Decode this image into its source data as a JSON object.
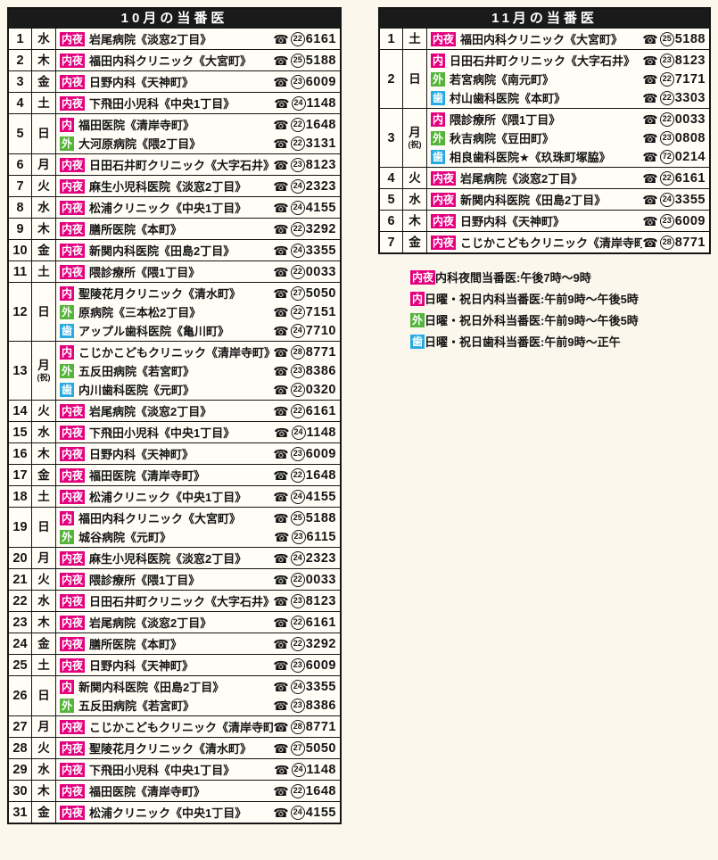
{
  "colors": {
    "page_bg": "#fbf7ec",
    "cell_bg": "#fffdf6",
    "header_bg": "#1a1a1a",
    "header_text": "#ffffff",
    "border": "#151515",
    "badge_naiya": "#e4007f",
    "badge_nai": "#e4007f",
    "badge_geka": "#55b43a",
    "badge_shika": "#29abe2"
  },
  "icons": {
    "telephone": "☎"
  },
  "months": [
    {
      "title": "10月の当番医",
      "days": [
        {
          "day": "1",
          "weekday": "水",
          "holiday": "",
          "entries": [
            {
              "badge": "内夜",
              "type": "naiya",
              "name": "岩尾病院《淡窓2丁目》",
              "exchange": "22",
              "number": "6161"
            }
          ]
        },
        {
          "day": "2",
          "weekday": "木",
          "holiday": "",
          "entries": [
            {
              "badge": "内夜",
              "type": "naiya",
              "name": "福田内科クリニック《大宮町》",
              "exchange": "25",
              "number": "5188"
            }
          ]
        },
        {
          "day": "3",
          "weekday": "金",
          "holiday": "",
          "entries": [
            {
              "badge": "内夜",
              "type": "naiya",
              "name": "日野内科《天神町》",
              "exchange": "23",
              "number": "6009"
            }
          ]
        },
        {
          "day": "4",
          "weekday": "土",
          "holiday": "",
          "entries": [
            {
              "badge": "内夜",
              "type": "naiya",
              "name": "下飛田小児科《中央1丁目》",
              "exchange": "24",
              "number": "1148"
            }
          ]
        },
        {
          "day": "5",
          "weekday": "日",
          "holiday": "",
          "entries": [
            {
              "badge": "内",
              "type": "nai",
              "name": "福田医院《清岸寺町》",
              "exchange": "22",
              "number": "1648"
            },
            {
              "badge": "外",
              "type": "geka",
              "name": "大河原病院《隈2丁目》",
              "exchange": "22",
              "number": "3131"
            }
          ]
        },
        {
          "day": "6",
          "weekday": "月",
          "holiday": "",
          "entries": [
            {
              "badge": "内夜",
              "type": "naiya",
              "name": "日田石井町クリニック《大字石井》",
              "exchange": "23",
              "number": "8123"
            }
          ]
        },
        {
          "day": "7",
          "weekday": "火",
          "holiday": "",
          "entries": [
            {
              "badge": "内夜",
              "type": "naiya",
              "name": "麻生小児科医院《淡窓2丁目》",
              "exchange": "24",
              "number": "2323"
            }
          ]
        },
        {
          "day": "8",
          "weekday": "水",
          "holiday": "",
          "entries": [
            {
              "badge": "内夜",
              "type": "naiya",
              "name": "松浦クリニック《中央1丁目》",
              "exchange": "24",
              "number": "4155"
            }
          ]
        },
        {
          "day": "9",
          "weekday": "木",
          "holiday": "",
          "entries": [
            {
              "badge": "内夜",
              "type": "naiya",
              "name": "膳所医院《本町》",
              "exchange": "22",
              "number": "3292"
            }
          ]
        },
        {
          "day": "10",
          "weekday": "金",
          "holiday": "",
          "entries": [
            {
              "badge": "内夜",
              "type": "naiya",
              "name": "新関内科医院《田島2丁目》",
              "exchange": "24",
              "number": "3355"
            }
          ]
        },
        {
          "day": "11",
          "weekday": "土",
          "holiday": "",
          "entries": [
            {
              "badge": "内夜",
              "type": "naiya",
              "name": "隈診療所《隈1丁目》",
              "exchange": "22",
              "number": "0033"
            }
          ]
        },
        {
          "day": "12",
          "weekday": "日",
          "holiday": "",
          "entries": [
            {
              "badge": "内",
              "type": "nai",
              "name": "聖陵花月クリニック《清水町》",
              "exchange": "27",
              "number": "5050"
            },
            {
              "badge": "外",
              "type": "geka",
              "name": "原病院《三本松2丁目》",
              "exchange": "22",
              "number": "7151"
            },
            {
              "badge": "歯",
              "type": "shika",
              "name": "アップル歯科医院《亀川町》",
              "exchange": "24",
              "number": "7710"
            }
          ]
        },
        {
          "day": "13",
          "weekday": "月",
          "holiday": "(祝)",
          "entries": [
            {
              "badge": "内",
              "type": "nai",
              "name": "こじかこどもクリニック《清岸寺町》",
              "exchange": "28",
              "number": "8771"
            },
            {
              "badge": "外",
              "type": "geka",
              "name": "五反田病院《若宮町》",
              "exchange": "23",
              "number": "8386"
            },
            {
              "badge": "歯",
              "type": "shika",
              "name": "内川歯科医院《元町》",
              "exchange": "22",
              "number": "0320"
            }
          ]
        },
        {
          "day": "14",
          "weekday": "火",
          "holiday": "",
          "entries": [
            {
              "badge": "内夜",
              "type": "naiya",
              "name": "岩尾病院《淡窓2丁目》",
              "exchange": "22",
              "number": "6161"
            }
          ]
        },
        {
          "day": "15",
          "weekday": "水",
          "holiday": "",
          "entries": [
            {
              "badge": "内夜",
              "type": "naiya",
              "name": "下飛田小児科《中央1丁目》",
              "exchange": "24",
              "number": "1148"
            }
          ]
        },
        {
          "day": "16",
          "weekday": "木",
          "holiday": "",
          "entries": [
            {
              "badge": "内夜",
              "type": "naiya",
              "name": "日野内科《天神町》",
              "exchange": "23",
              "number": "6009"
            }
          ]
        },
        {
          "day": "17",
          "weekday": "金",
          "holiday": "",
          "entries": [
            {
              "badge": "内夜",
              "type": "naiya",
              "name": "福田医院《清岸寺町》",
              "exchange": "22",
              "number": "1648"
            }
          ]
        },
        {
          "day": "18",
          "weekday": "土",
          "holiday": "",
          "entries": [
            {
              "badge": "内夜",
              "type": "naiya",
              "name": "松浦クリニック《中央1丁目》",
              "exchange": "24",
              "number": "4155"
            }
          ]
        },
        {
          "day": "19",
          "weekday": "日",
          "holiday": "",
          "entries": [
            {
              "badge": "内",
              "type": "nai",
              "name": "福田内科クリニック《大宮町》",
              "exchange": "25",
              "number": "5188"
            },
            {
              "badge": "外",
              "type": "geka",
              "name": "城谷病院《元町》",
              "exchange": "23",
              "number": "6115"
            }
          ]
        },
        {
          "day": "20",
          "weekday": "月",
          "holiday": "",
          "entries": [
            {
              "badge": "内夜",
              "type": "naiya",
              "name": "麻生小児科医院《淡窓2丁目》",
              "exchange": "24",
              "number": "2323"
            }
          ]
        },
        {
          "day": "21",
          "weekday": "火",
          "holiday": "",
          "entries": [
            {
              "badge": "内夜",
              "type": "naiya",
              "name": "隈診療所《隈1丁目》",
              "exchange": "22",
              "number": "0033"
            }
          ]
        },
        {
          "day": "22",
          "weekday": "水",
          "holiday": "",
          "entries": [
            {
              "badge": "内夜",
              "type": "naiya",
              "name": "日田石井町クリニック《大字石井》",
              "exchange": "23",
              "number": "8123"
            }
          ]
        },
        {
          "day": "23",
          "weekday": "木",
          "holiday": "",
          "entries": [
            {
              "badge": "内夜",
              "type": "naiya",
              "name": "岩尾病院《淡窓2丁目》",
              "exchange": "22",
              "number": "6161"
            }
          ]
        },
        {
          "day": "24",
          "weekday": "金",
          "holiday": "",
          "entries": [
            {
              "badge": "内夜",
              "type": "naiya",
              "name": "膳所医院《本町》",
              "exchange": "22",
              "number": "3292"
            }
          ]
        },
        {
          "day": "25",
          "weekday": "土",
          "holiday": "",
          "entries": [
            {
              "badge": "内夜",
              "type": "naiya",
              "name": "日野内科《天神町》",
              "exchange": "23",
              "number": "6009"
            }
          ]
        },
        {
          "day": "26",
          "weekday": "日",
          "holiday": "",
          "entries": [
            {
              "badge": "内",
              "type": "nai",
              "name": "新関内科医院《田島2丁目》",
              "exchange": "24",
              "number": "3355"
            },
            {
              "badge": "外",
              "type": "geka",
              "name": "五反田病院《若宮町》",
              "exchange": "23",
              "number": "8386"
            }
          ]
        },
        {
          "day": "27",
          "weekday": "月",
          "holiday": "",
          "entries": [
            {
              "badge": "内夜",
              "type": "naiya",
              "name": "こじかこどもクリニック《清岸寺町》",
              "exchange": "28",
              "number": "8771"
            }
          ]
        },
        {
          "day": "28",
          "weekday": "火",
          "holiday": "",
          "entries": [
            {
              "badge": "内夜",
              "type": "naiya",
              "name": "聖陵花月クリニック《清水町》",
              "exchange": "27",
              "number": "5050"
            }
          ]
        },
        {
          "day": "29",
          "weekday": "水",
          "holiday": "",
          "entries": [
            {
              "badge": "内夜",
              "type": "naiya",
              "name": "下飛田小児科《中央1丁目》",
              "exchange": "24",
              "number": "1148"
            }
          ]
        },
        {
          "day": "30",
          "weekday": "木",
          "holiday": "",
          "entries": [
            {
              "badge": "内夜",
              "type": "naiya",
              "name": "福田医院《清岸寺町》",
              "exchange": "22",
              "number": "1648"
            }
          ]
        },
        {
          "day": "31",
          "weekday": "金",
          "holiday": "",
          "entries": [
            {
              "badge": "内夜",
              "type": "naiya",
              "name": "松浦クリニック《中央1丁目》",
              "exchange": "24",
              "number": "4155"
            }
          ]
        }
      ]
    },
    {
      "title": "11月の当番医",
      "days": [
        {
          "day": "1",
          "weekday": "土",
          "holiday": "",
          "entries": [
            {
              "badge": "内夜",
              "type": "naiya",
              "name": "福田内科クリニック《大宮町》",
              "exchange": "25",
              "number": "5188"
            }
          ]
        },
        {
          "day": "2",
          "weekday": "日",
          "holiday": "",
          "entries": [
            {
              "badge": "内",
              "type": "nai",
              "name": "日田石井町クリニック《大字石井》",
              "exchange": "23",
              "number": "8123"
            },
            {
              "badge": "外",
              "type": "geka",
              "name": "若宮病院《南元町》",
              "exchange": "22",
              "number": "7171"
            },
            {
              "badge": "歯",
              "type": "shika",
              "name": "村山歯科医院《本町》",
              "exchange": "22",
              "number": "3303"
            }
          ]
        },
        {
          "day": "3",
          "weekday": "月",
          "holiday": "(祝)",
          "entries": [
            {
              "badge": "内",
              "type": "nai",
              "name": "隈診療所《隈1丁目》",
              "exchange": "22",
              "number": "0033"
            },
            {
              "badge": "外",
              "type": "geka",
              "name": "秋吉病院《豆田町》",
              "exchange": "23",
              "number": "0808"
            },
            {
              "badge": "歯",
              "type": "shika",
              "name": "相良歯科医院★《玖珠町塚脇》",
              "exchange": "72",
              "number": "0214"
            }
          ]
        },
        {
          "day": "4",
          "weekday": "火",
          "holiday": "",
          "entries": [
            {
              "badge": "内夜",
              "type": "naiya",
              "name": "岩尾病院《淡窓2丁目》",
              "exchange": "22",
              "number": "6161"
            }
          ]
        },
        {
          "day": "5",
          "weekday": "水",
          "holiday": "",
          "entries": [
            {
              "badge": "内夜",
              "type": "naiya",
              "name": "新関内科医院《田島2丁目》",
              "exchange": "24",
              "number": "3355"
            }
          ]
        },
        {
          "day": "6",
          "weekday": "木",
          "holiday": "",
          "entries": [
            {
              "badge": "内夜",
              "type": "naiya",
              "name": "日野内科《天神町》",
              "exchange": "23",
              "number": "6009"
            }
          ]
        },
        {
          "day": "7",
          "weekday": "金",
          "holiday": "",
          "entries": [
            {
              "badge": "内夜",
              "type": "naiya",
              "name": "こじかこどもクリニック《清岸寺町》",
              "exchange": "28",
              "number": "8771"
            }
          ]
        }
      ]
    }
  ],
  "legend": [
    {
      "badge": "内夜",
      "type": "naiya",
      "text": "内科夜間当番医:午後7時〜9時"
    },
    {
      "badge": "内",
      "type": "nai",
      "text": "日曜・祝日内科当番医:午前9時〜午後5時"
    },
    {
      "badge": "外",
      "type": "geka",
      "text": "日曜・祝日外科当番医:午前9時〜午後5時"
    },
    {
      "badge": "歯",
      "type": "shika",
      "text": "日曜・祝日歯科当番医:午前9時〜正午"
    }
  ]
}
